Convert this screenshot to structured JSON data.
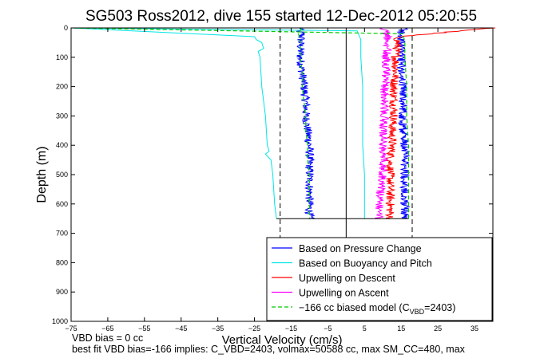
{
  "chart_data": {
    "type": "line",
    "title": "SG503 Ross2012, dive 155 started 12-Dec-2012 05:20:55",
    "xlabel": "Vertical Velocity (cm/s)",
    "ylabel": "Depth (m)",
    "xlim": [
      -75,
      40
    ],
    "ylim": [
      0,
      1000
    ],
    "y_reversed": true,
    "x_ticks": [
      -75,
      -65,
      -55,
      -45,
      -35,
      -25,
      -15,
      -5,
      5,
      15,
      25,
      35
    ],
    "y_ticks": [
      0,
      100,
      200,
      300,
      400,
      500,
      600,
      700,
      800,
      900,
      1000
    ],
    "grid": false,
    "legend_position": "lower-right",
    "vertical_lines": [
      {
        "x": -18,
        "style": "dashed",
        "color": "#000000"
      },
      {
        "x": 0,
        "style": "solid",
        "color": "#000000"
      },
      {
        "x": 18,
        "style": "dashed",
        "color": "#000000"
      }
    ],
    "series": [
      {
        "name": "Based on Pressure Change",
        "color": "#0000ff",
        "segments": [
          {
            "depth": [
              0,
              10,
              20,
              50,
              100,
              150,
              200,
              250,
              300,
              350,
              400,
              450,
              500,
              550,
              600,
              650
            ],
            "velocity": [
              -12,
              -13,
              -12,
              -12.5,
              -12.5,
              -12,
              -11.5,
              -11,
              -11,
              -10.5,
              -10,
              -10,
              -10,
              -10,
              -10,
              -10
            ]
          },
          {
            "depth": [
              650,
              600,
              550,
              500,
              450,
              400,
              350,
              300,
              250,
              200,
              150,
              100,
              50,
              20,
              10,
              0
            ],
            "velocity": [
              16,
              16,
              16,
              16,
              16,
              16,
              15.5,
              15.5,
              15.5,
              15.5,
              15,
              15,
              15,
              15,
              15,
              16
            ]
          }
        ]
      },
      {
        "name": "Based on Buoyancy and Pitch",
        "color": "#00e5e5",
        "segments": [
          {
            "depth": [
              0,
              30,
              40,
              50,
              70,
              80,
              100,
              200,
              300,
              400,
              420,
              430,
              450,
              500,
              600,
              650
            ],
            "velocity": [
              -75,
              -25,
              -24.5,
              -23,
              -22.5,
              -24,
              -23.5,
              -23,
              -22,
              -21.5,
              -21,
              -22,
              -20.5,
              -20,
              -19.5,
              -19
            ]
          },
          {
            "depth": [
              650,
              600,
              500,
              400,
              300,
              200,
              100,
              40,
              10,
              0
            ],
            "velocity": [
              5,
              5,
              5,
              4.5,
              4.5,
              4.5,
              4,
              4,
              3,
              -75
            ]
          }
        ]
      },
      {
        "name": "Upwelling on Descent",
        "color": "#ff0000",
        "segments": [
          {
            "depth": [
              0,
              30,
              50,
              100,
              150,
              200,
              250,
              300,
              350,
              400,
              450,
              500,
              550,
              600,
              650
            ],
            "velocity": [
              40,
              14,
              14,
              13.5,
              13.5,
              13,
              13,
              13,
              12.5,
              12.5,
              12,
              12,
              12,
              12,
              12
            ]
          }
        ]
      },
      {
        "name": "Upwelling on Ascent",
        "color": "#ff00ff",
        "segments": [
          {
            "depth": [
              650,
              600,
              550,
              500,
              450,
              400,
              350,
              300,
              250,
              200,
              150,
              100,
              50,
              20,
              0
            ],
            "velocity": [
              9,
              9,
              9.5,
              10,
              10,
              10,
              10,
              10.5,
              10.5,
              10.5,
              11,
              11,
              11.5,
              11,
              10
            ]
          }
        ]
      },
      {
        "name": "-166 cc biased model (C_VBD=2403)",
        "color": "#00cc00",
        "dashed": true,
        "segments": [
          {
            "depth": [
              0,
              20,
              50,
              100,
              150,
              200,
              250,
              300,
              350,
              400,
              450,
              500,
              550,
              600,
              650
            ],
            "velocity": [
              -12,
              -13,
              -12.5,
              -12.5,
              -12,
              -12,
              -11.5,
              -11,
              -11,
              -10.5,
              -10.5,
              -10,
              -10,
              -10,
              -10
            ]
          },
          {
            "depth": [
              650,
              600,
              500,
              400,
              300,
              200,
              100,
              50,
              20,
              0
            ],
            "velocity": [
              17,
              17,
              17,
              17,
              16.5,
              16.5,
              16,
              16,
              15.5,
              -75
            ]
          }
        ]
      }
    ],
    "legend": [
      {
        "label": "Based on Pressure Change",
        "color": "#0000ff",
        "dash": false
      },
      {
        "label": "Based on Buoyancy and Pitch",
        "color": "#00e5e5",
        "dash": false
      },
      {
        "label": "Upwelling on Descent",
        "color": "#ff0000",
        "dash": false
      },
      {
        "label": "Upwelling on Ascent",
        "color": "#ff00ff",
        "dash": false
      },
      {
        "label": "−166 cc biased model (C",
        "sub": "VBD",
        "suffix": "=2403)",
        "color": "#00cc00",
        "dash": true
      }
    ]
  },
  "notes": {
    "line1": "VBD bias = 0 cc",
    "line2": "best fit VBD bias=-166 implies: C_VBD=2403, volmax=50588 cc, max SM_CC=480, max"
  }
}
